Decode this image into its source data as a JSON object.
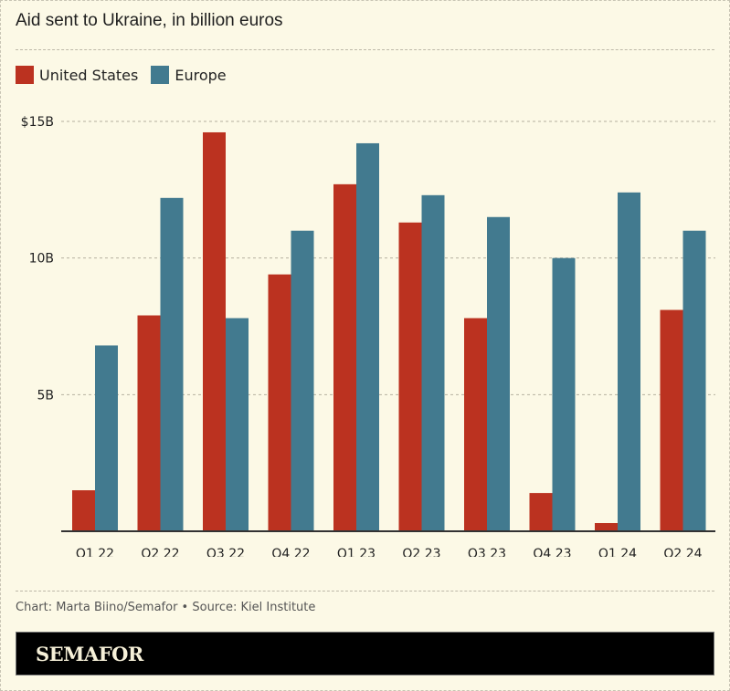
{
  "header": {
    "title": "Aid sent to Ukraine, in billion euros"
  },
  "legend": [
    {
      "label": "United States",
      "color": "#bb3220"
    },
    {
      "label": "Europe",
      "color": "#427a8f"
    }
  ],
  "footer": {
    "credit": "Chart: Marta Biino/Semafor • Source: Kiel Institute",
    "brand": "SEMAFOR"
  },
  "chart_data": {
    "type": "bar",
    "title": "Aid sent to Ukraine, in billion euros",
    "xlabel": "",
    "ylabel": "",
    "categories": [
      "Q1 22",
      "Q2 22",
      "Q3 22",
      "Q4 22",
      "Q1 23",
      "Q2 23",
      "Q3 23",
      "Q4 23",
      "Q1 24",
      "Q2 24"
    ],
    "series": [
      {
        "name": "United States",
        "color": "#bb3220",
        "values": [
          1.5,
          7.9,
          14.6,
          9.4,
          12.7,
          11.3,
          7.8,
          1.4,
          0.3,
          8.1
        ]
      },
      {
        "name": "Europe",
        "color": "#427a8f",
        "values": [
          6.8,
          12.2,
          7.8,
          11.0,
          14.2,
          12.3,
          11.5,
          10.0,
          12.4,
          11.0
        ]
      }
    ],
    "ylim": [
      0,
      15
    ],
    "yticks": [
      5,
      10,
      15
    ],
    "ytick_labels": [
      "5B",
      "10B",
      "$15B"
    ],
    "grid": true,
    "legend_position": "top-left"
  }
}
